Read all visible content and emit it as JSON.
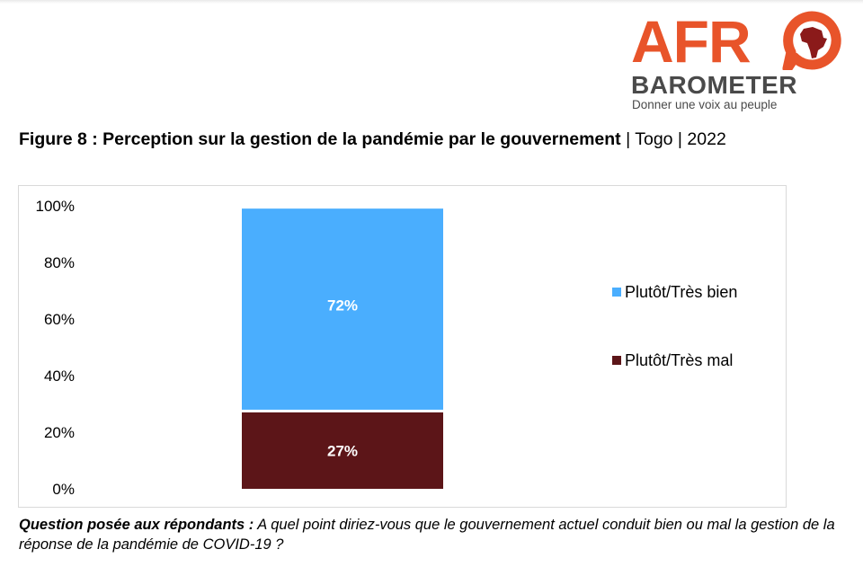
{
  "logo": {
    "letters": [
      "A",
      "F",
      "R"
    ],
    "second_line": "BAROMETER",
    "tagline": "Donner une voix au peuple",
    "colors": {
      "afro": "#e8542a",
      "text": "#4a4a4a",
      "map": "#8b1a1a"
    }
  },
  "title": {
    "bold": "Figure 8 : Perception sur la gestion de la pandémie par le gouvernement",
    "rest": " | Togo | 2022"
  },
  "chart_data": {
    "type": "bar",
    "stacked": true,
    "categories": [
      ""
    ],
    "series": [
      {
        "name": "Plutôt/Très mal",
        "values": [
          27
        ],
        "label": "27%",
        "color": "#5c1518"
      },
      {
        "name": "Plutôt/Très bien",
        "values": [
          72
        ],
        "label": "72%",
        "color": "#4aaefe"
      }
    ],
    "ylim": [
      0,
      100
    ],
    "yticks": [
      "0%",
      "20%",
      "40%",
      "60%",
      "80%",
      "100%"
    ],
    "grid": false,
    "legend": {
      "position": "right",
      "order": [
        "Plutôt/Très bien",
        "Plutôt/Très mal"
      ]
    }
  },
  "question": {
    "label": "Question posée aux répondants :",
    "text": " A quel point diriez-vous que le gouvernement actuel conduit bien ou mal la gestion de la réponse de la pandémie de COVID-19 ?"
  }
}
